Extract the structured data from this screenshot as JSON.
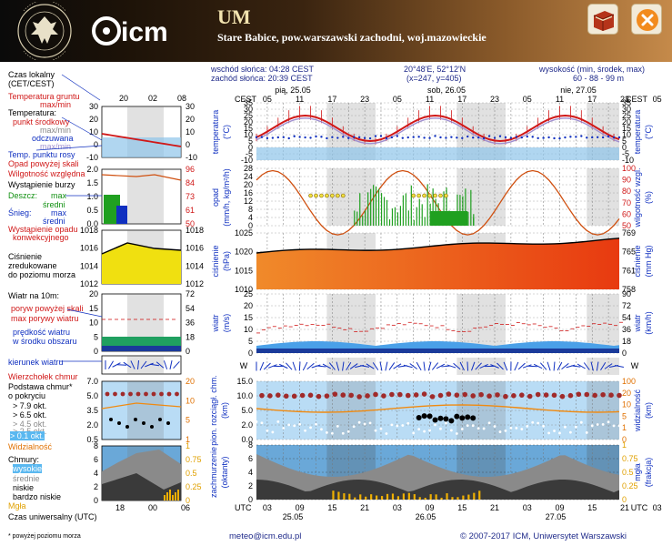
{
  "header": {
    "title": "UM",
    "location": "Stare Babice, pow.warszawski zachodni, woj.mazowieckie",
    "uni_logo_text": "UNIWERSYTET WARSZAWSKI",
    "icm_logo_text": "icm"
  },
  "info": {
    "sunrise": "wschód słońca: 04:28 CEST",
    "sunset": "zachód słońca: 20:39 CEST",
    "coords": "20°48'E, 52°12'N",
    "grid": "(x=247, y=405)",
    "altitude_label": "wysokość (min, środek, max)",
    "altitude_values": "60 - 88 - 99 m"
  },
  "legend": {
    "local_time": "Czas lokalny",
    "local_time_sub": "(CET/CEST)",
    "soil_temp": "Temperatura gruntu",
    "soil_temp_sub": "max/min",
    "temp": "Temperatura:",
    "temp_point": "punkt środkowy",
    "temp_range": "max/min",
    "temp_felt": "odczuwana",
    "temp_felt_range": "max/min",
    "dew_point": "Temp. punktu rosy",
    "precip_scale": "Opad powyżej skali",
    "humidity": "Wilgotność względna",
    "storm": "Wystąpienie burzy",
    "rain": "Deszcz:",
    "rain_max": "max",
    "rain_mean": "średni",
    "snow": "Śnieg:",
    "snow_max": "max",
    "snow_mean": "średni",
    "convective": "Wystąpienie opadu",
    "convective_sub": "konwekcyjnego",
    "pressure1": "Ciśnienie",
    "pressure2": "zredukowane",
    "pressure3": "do poziomu morza",
    "wind10": "Wiatr na 10m:",
    "gust_scale": "poryw powyżej skali",
    "gust_max": "max porywy wiatru",
    "wind_mean1": "prędkość wiatru",
    "wind_mean2": "w środku obszaru",
    "wind_dir": "kierunek wiatru",
    "cloud_top": "Wierzchołek chmur",
    "cloud_base1": "Podstawa chmur*",
    "cloud_base2": "o pokryciu",
    "okt79": "> 7.9 okt.",
    "okt65": "> 6.5 okt.",
    "okt45": "> 4.5 okt.",
    "okt25": "> 2.5 okt.",
    "okt01": "> 0.1 okt.",
    "visibility": "Widzialność",
    "clouds": "Chmury:",
    "clouds_high": "wysokie",
    "clouds_mid": "średnie",
    "clouds_low": "niskie",
    "clouds_vlow": "bardzo niskie",
    "fog": "Mgła",
    "utc_time": "Czas uniwersalny (UTC)",
    "footnote": "* powyżej poziomu morza"
  },
  "days": {
    "d1": "pią, 25.05",
    "d2": "sob, 26.05",
    "d3": "nie, 27.05",
    "u1": "25.05",
    "u2": "26.05",
    "u3": "27.05"
  },
  "axes": {
    "cest": "CEST",
    "utc": "UTC",
    "temp_left": "temperatura",
    "temp_unit": "(°C)",
    "temp_right": "temperatura",
    "precip_left": "opad",
    "precip_unit": "(mm/h, kg/m²/h)",
    "humid_right": "wilgotność wzgl.",
    "humid_unit": "(%)",
    "press_left": "ciśnienie",
    "press_unit": "(hPa)",
    "press_right": "ciśnienie",
    "press_unit_r": "(mm Hg)",
    "wind_left": "wiatr",
    "wind_unit": "(m/s)",
    "wind_right": "wiatr",
    "wind_unit_r": "(km/h)",
    "cloudbase_left": "pion. rozciągł. chm.",
    "cloudbase_unit": "(km)",
    "vis_right": "widzialność",
    "vis_unit": "(km)",
    "cover_left": "zachmurzenie",
    "cover_unit": "(oktanty)",
    "fog_right": "mgła",
    "fog_unit": "(frakcja)"
  },
  "ticks": {
    "cest_top": [
      "05",
      "11",
      "17",
      "23",
      "05",
      "11",
      "17",
      "23",
      "05",
      "11",
      "17",
      "23",
      "05"
    ],
    "utc_bottom": [
      "03",
      "09",
      "15",
      "21",
      "03",
      "09",
      "15",
      "21",
      "03",
      "09",
      "15",
      "21",
      "03"
    ],
    "mini_top": [
      "20",
      "02",
      "08"
    ],
    "mini_bottom": [
      "18",
      "00",
      "06"
    ],
    "temp_l": [
      "35",
      "30",
      "25",
      "20",
      "15",
      "10",
      "5",
      "0",
      "-5",
      "-10"
    ],
    "mini_temp_l": [
      "30",
      "20",
      "10",
      "0",
      "-10"
    ],
    "mini_temp_r": [
      "30",
      "20",
      "10",
      "0",
      "-10"
    ],
    "precip_l": [
      "28",
      "24",
      "20",
      "16",
      "12",
      "8",
      "4",
      "0"
    ],
    "mini_precip_l": [
      "2.0",
      "1.5",
      "1.0",
      "0.5",
      "0.0"
    ],
    "humid_r": [
      "100",
      "90",
      "80",
      "70",
      "60",
      "50"
    ],
    "mini_humid_r": [
      "96",
      "84",
      "73",
      "61",
      "50"
    ],
    "press_l": [
      "1025",
      "1020",
      "1015",
      "1010"
    ],
    "press_r": [
      "769",
      "765",
      "761",
      "758"
    ],
    "mini_press_l": [
      "1018",
      "1016",
      "1014",
      "1012"
    ],
    "mini_press_r": [
      "1018",
      "1016",
      "1014",
      "1012"
    ],
    "wind_l": [
      "25",
      "20",
      "15",
      "10",
      "5",
      "0"
    ],
    "wind_r": [
      "90",
      "72",
      "54",
      "36",
      "18",
      "0"
    ],
    "mini_wind_l": [
      "20",
      "15",
      "10",
      "5",
      "0"
    ],
    "mini_wind_r": [
      "72",
      "54",
      "36",
      "18",
      "0"
    ],
    "cb_l": [
      "15.0",
      "10.0",
      "5.0",
      "2.0",
      "0.0"
    ],
    "vis_r": [
      "100",
      "20",
      "10",
      "5",
      "1",
      "0"
    ],
    "mini_cb_l": [
      "7.0",
      "5.0",
      "3.5",
      "2.0",
      "0.5"
    ],
    "mini_vis_r": [
      "20",
      "10",
      "5",
      "1"
    ],
    "cover_l": [
      "8",
      "6",
      "4",
      "2",
      "0"
    ],
    "fog_r": [
      "1",
      "0.75",
      "0.5",
      "0.25",
      "0"
    ],
    "mini_cover_l": [
      "8",
      "6",
      "4",
      "2",
      "0"
    ],
    "mini_fog_r": [
      "1",
      "0.75",
      "0.5",
      "0.25",
      "0"
    ]
  },
  "footer": {
    "email": "meteo@icm.edu.pl",
    "copyright": "© 2007-2017 ICM, Uniwersytet Warszawski"
  }
}
